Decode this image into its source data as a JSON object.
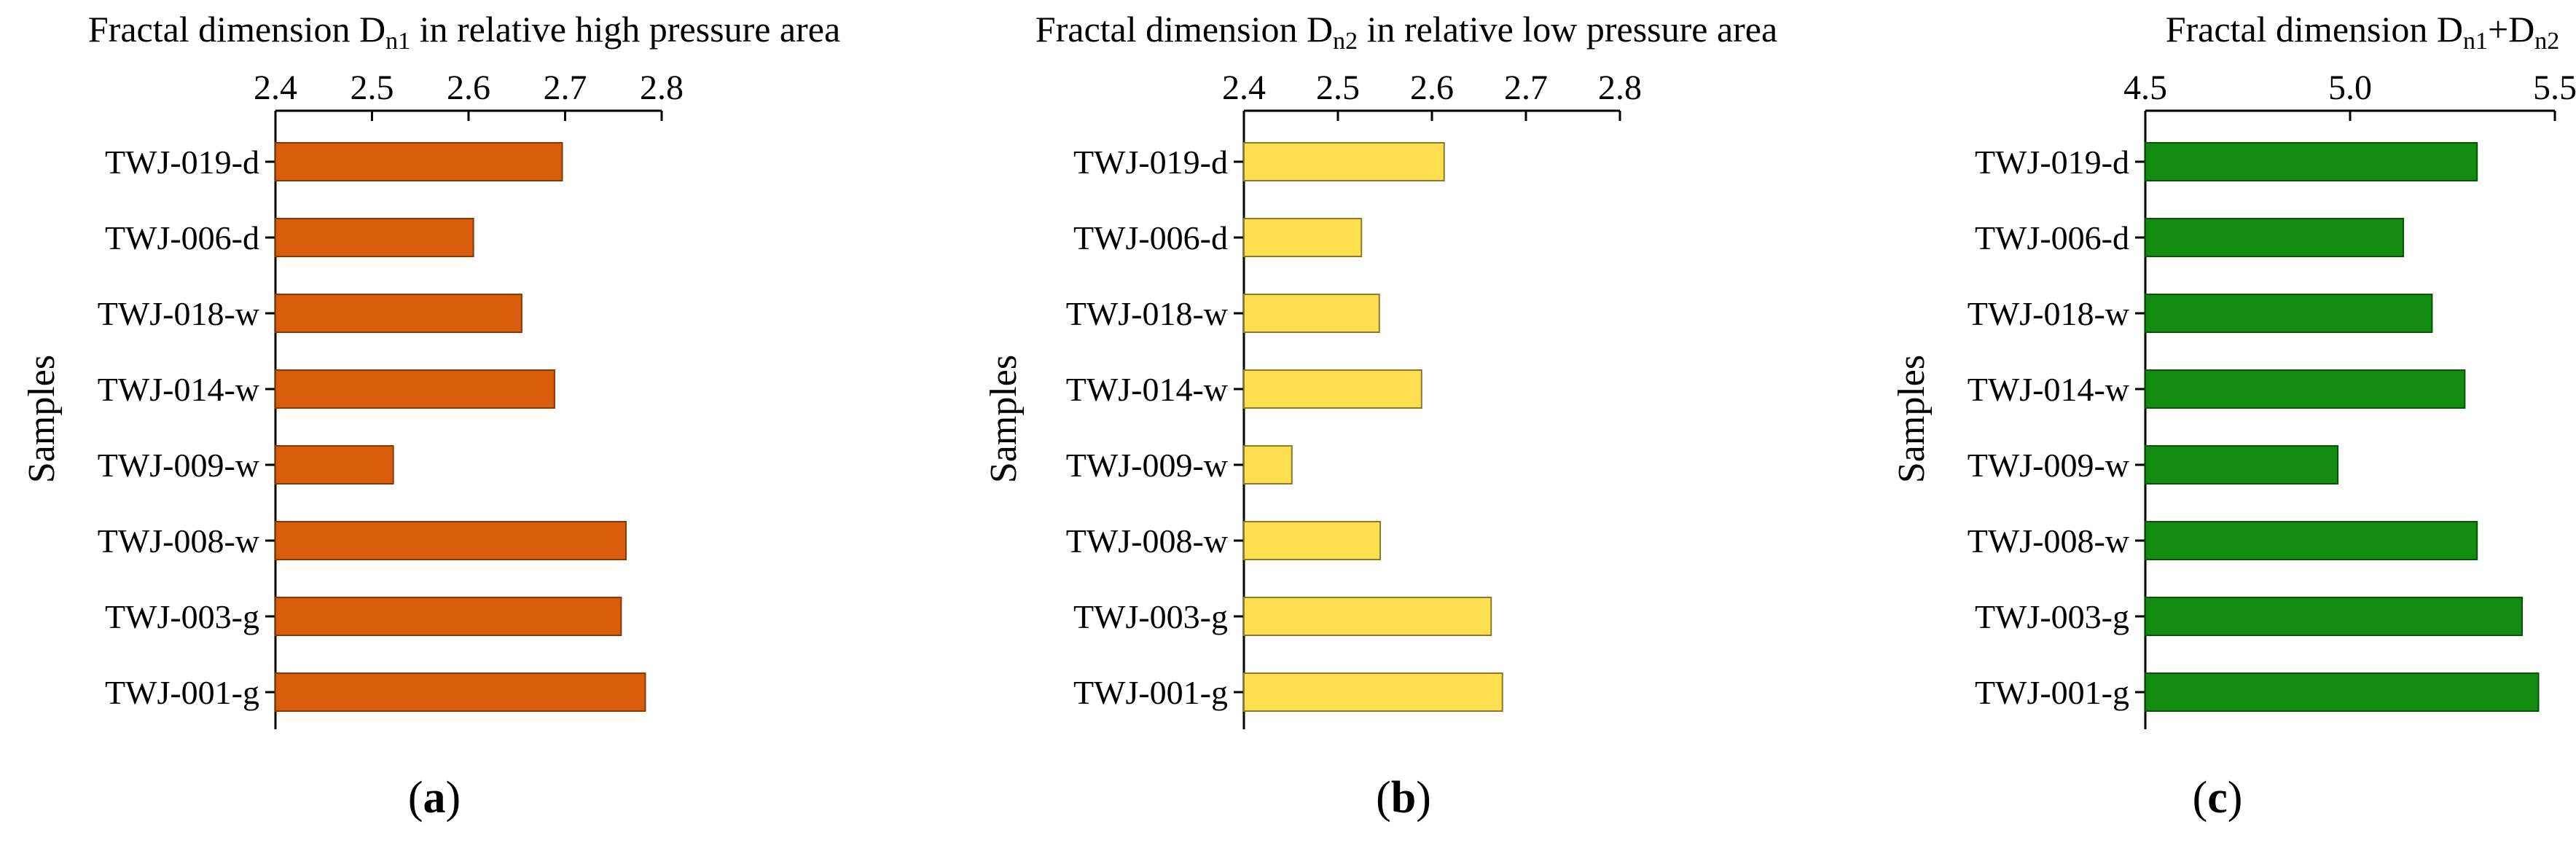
{
  "chart_data": [
    {
      "type": "bar",
      "orientation": "horizontal",
      "title_prefix": "Fractal dimension D",
      "title_sub": "n1",
      "title_suffix": " in relative high pressure area",
      "ylabel": "Samples",
      "panel_label": "a",
      "xlim": [
        2.4,
        2.8
      ],
      "xticks": [
        "2.4",
        "2.5",
        "2.6",
        "2.7",
        "2.8"
      ],
      "categories": [
        "TWJ-019-d",
        "TWJ-006-d",
        "TWJ-018-w",
        "TWJ-014-w",
        "TWJ-009-w",
        "TWJ-008-w",
        "TWJ-003-g",
        "TWJ-001-g"
      ],
      "values": [
        2.697,
        2.605,
        2.655,
        2.689,
        2.522,
        2.763,
        2.758,
        2.783
      ],
      "color": "#d95b0c",
      "edge_color": "#8a3706"
    },
    {
      "type": "bar",
      "orientation": "horizontal",
      "title_prefix": "Fractal dimension D",
      "title_sub": "n2",
      "title_suffix": " in relative low pressure area",
      "ylabel": "Samples",
      "panel_label": "b",
      "xlim": [
        2.4,
        2.8
      ],
      "xticks": [
        "2.4",
        "2.5",
        "2.6",
        "2.7",
        "2.8"
      ],
      "categories": [
        "TWJ-019-d",
        "TWJ-006-d",
        "TWJ-018-w",
        "TWJ-014-w",
        "TWJ-009-w",
        "TWJ-008-w",
        "TWJ-003-g",
        "TWJ-001-g"
      ],
      "values": [
        2.613,
        2.525,
        2.544,
        2.589,
        2.451,
        2.545,
        2.663,
        2.675
      ],
      "color": "#fedf4f",
      "edge_color": "#8a7a2a"
    },
    {
      "type": "bar",
      "orientation": "horizontal",
      "title_prefix": "Fractal dimension D",
      "title_sub": "n1",
      "title_mid": "+D",
      "title_sub2": "n2",
      "title_suffix": "",
      "ylabel": "Samples",
      "panel_label": "c",
      "xlim": [
        4.5,
        5.5
      ],
      "xticks": [
        "4.5",
        "5.0",
        "5.5"
      ],
      "categories": [
        "TWJ-019-d",
        "TWJ-006-d",
        "TWJ-018-w",
        "TWJ-014-w",
        "TWJ-009-w",
        "TWJ-008-w",
        "TWJ-003-g",
        "TWJ-001-g"
      ],
      "values": [
        5.31,
        5.13,
        5.2,
        5.28,
        4.97,
        5.31,
        5.42,
        5.46
      ],
      "color": "#118c11",
      "edge_color": "#0a520a"
    }
  ]
}
